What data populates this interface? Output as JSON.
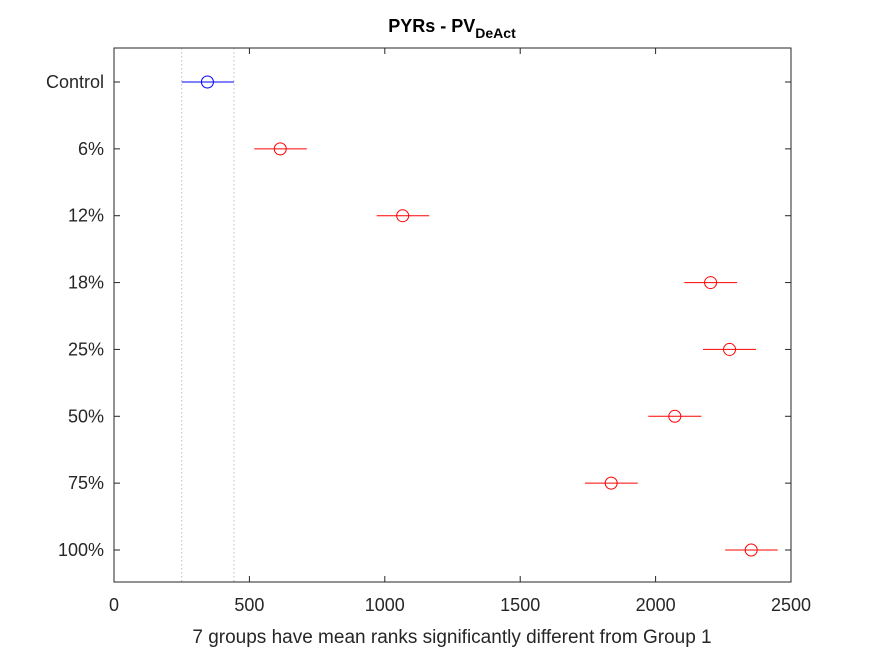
{
  "chart_data": {
    "type": "scatter",
    "title": "PYRs - PV",
    "title_subscript": "DeAct",
    "xlabel": "7 groups have mean ranks significantly different from Group 1",
    "ylabel": "",
    "xlim": [
      0,
      2500
    ],
    "xticks": [
      0,
      500,
      1000,
      1500,
      2000,
      2500
    ],
    "grid": false,
    "categories": [
      "Control",
      "6%",
      "12%",
      "18%",
      "25%",
      "50%",
      "75%",
      "100%"
    ],
    "groups": [
      {
        "label": "Control",
        "mean": 345,
        "low": 250,
        "high": 443,
        "color": "#0000ff"
      },
      {
        "label": "6%",
        "mean": 614,
        "low": 518,
        "high": 712,
        "color": "#ff0000"
      },
      {
        "label": "12%",
        "mean": 1066,
        "low": 970,
        "high": 1164,
        "color": "#ff0000"
      },
      {
        "label": "18%",
        "mean": 2203,
        "low": 2106,
        "high": 2301,
        "color": "#ff0000"
      },
      {
        "label": "25%",
        "mean": 2273,
        "low": 2175,
        "high": 2371,
        "color": "#ff0000"
      },
      {
        "label": "50%",
        "mean": 2071,
        "low": 1973,
        "high": 2169,
        "color": "#ff0000"
      },
      {
        "label": "75%",
        "mean": 1836,
        "low": 1739,
        "high": 1934,
        "color": "#ff0000"
      },
      {
        "label": "100%",
        "mean": 2353,
        "low": 2257,
        "high": 2451,
        "color": "#ff0000"
      }
    ],
    "reference_lines": [
      250,
      443
    ]
  }
}
